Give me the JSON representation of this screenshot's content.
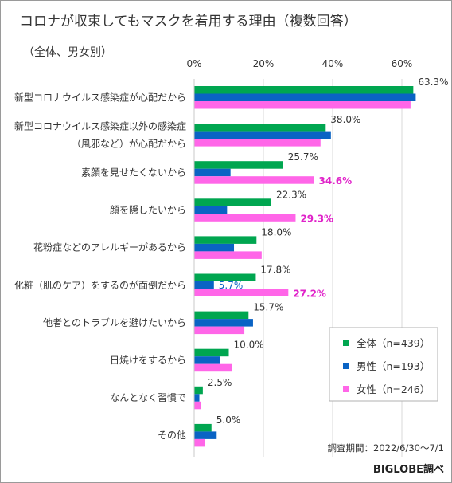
{
  "chart_data": {
    "type": "bar",
    "orientation": "horizontal",
    "title": "コロナが収束してもマスクを着用する理由（複数回答）",
    "subtitle": "（全体、男女別）",
    "x_ticks": [
      "0%",
      "20%",
      "40%",
      "60%"
    ],
    "xlim": [
      0,
      70
    ],
    "grid": true,
    "legend_position": "right-bottom",
    "categories": [
      [
        "新型コロナウイルス感染症が心配だから"
      ],
      [
        "新型コロナウイルス感染症以外の感染症",
        "（風邪など）が心配だから"
      ],
      [
        "素顔を見せたくないから"
      ],
      [
        "顔を隠したいから"
      ],
      [
        "花粉症などのアレルギーがあるから"
      ],
      [
        "化粧（肌のケア）をするのが面倒だから"
      ],
      [
        "他者とのトラブルを避けたいから"
      ],
      [
        "日焼けをするから"
      ],
      [
        "なんとなく習慣で"
      ],
      [
        "その他"
      ]
    ],
    "series": [
      {
        "name": "全体（n=439）",
        "color": "#00a650",
        "values": [
          63.3,
          38.0,
          25.7,
          22.3,
          18.0,
          17.8,
          15.7,
          10.0,
          2.5,
          5.0
        ],
        "labels": [
          "63.3%",
          "38.0%",
          "25.7%",
          "22.3%",
          "18.0%",
          "17.8%",
          "15.7%",
          "10.0%",
          "2.5%",
          "5.0%"
        ],
        "label_color": "#333333"
      },
      {
        "name": "男性（n=193）",
        "color": "#0a63c4",
        "values": [
          64.0,
          39.5,
          10.5,
          9.5,
          11.5,
          5.7,
          17.0,
          7.5,
          1.5,
          6.5
        ],
        "labels": [
          "",
          "",
          "",
          "",
          "",
          "5.7%",
          "",
          "",
          "",
          ""
        ],
        "label_color": "#0a63c4"
      },
      {
        "name": "女性（n=246）",
        "color": "#ff66e8",
        "values": [
          62.5,
          36.5,
          34.6,
          29.3,
          19.5,
          27.2,
          14.5,
          11.0,
          2.0,
          3.0
        ],
        "labels": [
          "",
          "",
          "34.6%",
          "29.3%",
          "",
          "27.2%",
          "",
          "",
          "",
          ""
        ],
        "label_color": "#e022c9"
      }
    ]
  },
  "footer": {
    "survey_period": "調査期間：2022/6/30〜7/1",
    "credit": "BIGLOBE調べ"
  }
}
